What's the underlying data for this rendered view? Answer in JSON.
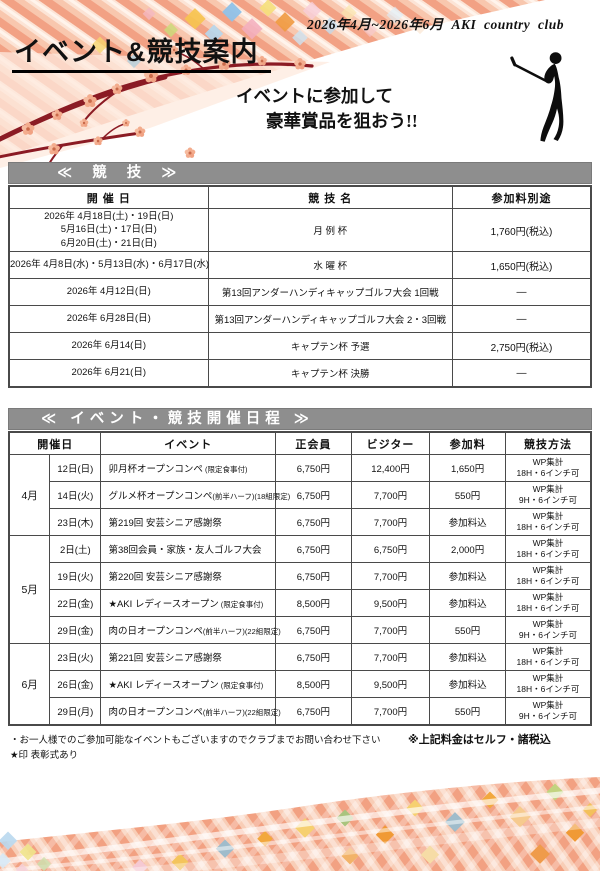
{
  "header": {
    "period": "2026年4月~2026年6月  AKI  country  club",
    "title": "イベント&競技案内",
    "subtitle_line1": "イベントに参加して",
    "subtitle_line2": "豪華賞品を狙おう!!"
  },
  "icons": {
    "golfer": "golfer-swing-silhouette",
    "blossom": "plum-blossom-branch",
    "stripes": "diagonal-stripe-wave"
  },
  "colors": {
    "bar_gray": "#8e8e8e",
    "stripe_salmon": "#f2a184",
    "branch_maroon": "#8b1b24",
    "table_border": "#4a4a4a"
  },
  "competitions": {
    "section_title": "≪ 競 技 ≫",
    "col_date": "開 催 日",
    "col_name": "競 技 名",
    "col_fee": "参加料別途",
    "rows": [
      {
        "dates": [
          "2026年 4月18日(土)・19日(日)",
          "5月16日(土)・17日(日)",
          "6月20日(土)・21日(日)"
        ],
        "name": "月 例 杯",
        "fee": "1,760円(税込)"
      },
      {
        "dates": [
          "2026年 4月8日(水)・5月13日(水)・6月17日(水)"
        ],
        "name": "水 曜 杯",
        "fee": "1,650円(税込)"
      },
      {
        "dates": [
          "2026年 4月12日(日)"
        ],
        "name": "第13回アンダーハンディキャップゴルフ大会 1回戦",
        "fee": "―"
      },
      {
        "dates": [
          "2026年 6月28日(日)"
        ],
        "name": "第13回アンダーハンディキャップゴルフ大会 2・3回戦",
        "fee": "―"
      },
      {
        "dates": [
          "2026年 6月14(日)"
        ],
        "name": "キャプテン杯 予選",
        "fee": "2,750円(税込)"
      },
      {
        "dates": [
          "2026年 6月21(日)"
        ],
        "name": "キャプテン杯 決勝",
        "fee": "―"
      }
    ]
  },
  "schedule": {
    "section_title": "≪ イベント・競技開催日程 ≫",
    "col_date": "開催日",
    "col_event": "イベント",
    "col_member": "正会員",
    "col_visitor": "ビジター",
    "col_fee": "参加料",
    "col_method": "競技方法",
    "rows": [
      {
        "month": "4月",
        "mspan": 3,
        "day": "12日(日)",
        "event": "卯月杯オープンコンペ",
        "note": " (限定食事付)",
        "member": "6,750円",
        "visitor": "12,400円",
        "fee": "1,650円",
        "method1": "WP集計",
        "method2": "18H・6インチ可"
      },
      {
        "day": "14日(火)",
        "event": "グルメ杯オープンコンペ",
        "note": "(前半ハーフ)(18組限定)",
        "member": "6,750円",
        "visitor": "7,700円",
        "fee": "550円",
        "method1": "WP集計",
        "method2": "9H・6インチ可"
      },
      {
        "day": "23日(木)",
        "event": "第219回 安芸シニア感謝祭",
        "note": "",
        "member": "6,750円",
        "visitor": "7,700円",
        "fee": "参加料込",
        "method1": "WP集計",
        "method2": "18H・6インチ可"
      },
      {
        "month": "5月",
        "mspan": 4,
        "day": "2日(土)",
        "event": "第38回会員・家族・友人ゴルフ大会",
        "note": "",
        "member": "6,750円",
        "visitor": "6,750円",
        "fee": "2,000円",
        "method1": "WP集計",
        "method2": "18H・6インチ可"
      },
      {
        "day": "19日(火)",
        "event": "第220回 安芸シニア感謝祭",
        "note": "",
        "member": "6,750円",
        "visitor": "7,700円",
        "fee": "参加料込",
        "method1": "WP集計",
        "method2": "18H・6インチ可"
      },
      {
        "day": "22日(金)",
        "event": "★AKI レディースオープン",
        "note": " (限定食事付)",
        "member": "8,500円",
        "visitor": "9,500円",
        "fee": "参加料込",
        "method1": "WP集計",
        "method2": "18H・6インチ可"
      },
      {
        "day": "29日(金)",
        "event": "肉の日オープンコンペ",
        "note": "(前半ハーフ)(22組限定)",
        "member": "6,750円",
        "visitor": "7,700円",
        "fee": "550円",
        "method1": "WP集計",
        "method2": "9H・6インチ可"
      },
      {
        "month": "6月",
        "mspan": 3,
        "day": "23日(火)",
        "event": "第221回 安芸シニア感謝祭",
        "note": "",
        "member": "6,750円",
        "visitor": "7,700円",
        "fee": "参加料込",
        "method1": "WP集計",
        "method2": "18H・6インチ可"
      },
      {
        "day": "26日(金)",
        "event": "★AKI レディースオープン",
        "note": " (限定食事付)",
        "member": "8,500円",
        "visitor": "9,500円",
        "fee": "参加料込",
        "method1": "WP集計",
        "method2": "18H・6インチ可"
      },
      {
        "day": "29日(月)",
        "event": "肉の日オープンコンペ",
        "note": "(前半ハーフ)(22組限定)",
        "member": "6,750円",
        "visitor": "7,700円",
        "fee": "550円",
        "method1": "WP集計",
        "method2": "9H・6インチ可"
      }
    ]
  },
  "footnotes": {
    "note1": "・お一人様でのご参加可能なイベントもございますのでクラブまでお問い合わせ下さい",
    "note2": "★印 表彰式あり",
    "note_right": "※上記料金はセルフ・諸税込"
  }
}
